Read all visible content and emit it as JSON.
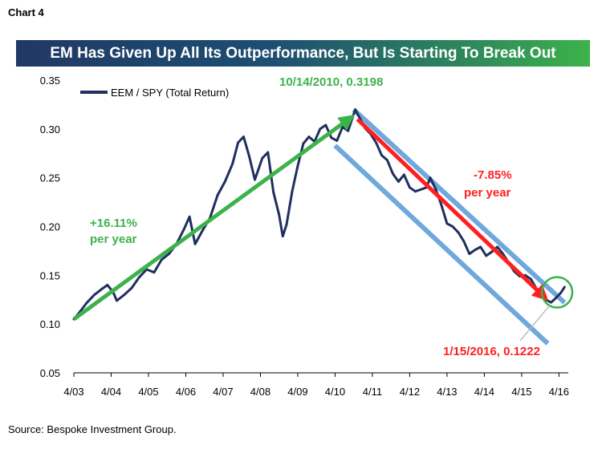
{
  "header": {
    "chart_label": "Chart 4",
    "title": "EM Has Given Up All Its Outperformance, But Is Starting To Break Out"
  },
  "footer": {
    "source": "Source: Bespoke Investment Group."
  },
  "colors": {
    "series": "#1f2f5e",
    "uptrend_arrow": "#3cb34a",
    "downtrend_arrow": "#ff1f1f",
    "channel": "#6fa8dc",
    "breakout_circle": "#3cb34a",
    "title_gradient_start": "#1f3864",
    "title_gradient_end": "#3cb34a"
  },
  "chart_data": {
    "type": "line",
    "title": "EM Has Given Up All Its Outperformance, But Is Starting To Break Out",
    "xlabel": "",
    "ylabel": "",
    "ylim": [
      0.05,
      0.35
    ],
    "yticks": [
      "0.05",
      "0.10",
      "0.15",
      "0.20",
      "0.25",
      "0.30",
      "0.35"
    ],
    "xlim": [
      2003.25,
      2016.5
    ],
    "xticks": [
      "4/03",
      "4/04",
      "4/05",
      "4/06",
      "4/07",
      "4/08",
      "4/09",
      "4/10",
      "4/11",
      "4/12",
      "4/13",
      "4/14",
      "4/15",
      "4/16"
    ],
    "grid": false,
    "legend_position": "top-left",
    "series": [
      {
        "name": "EEM / SPY (Total Return)",
        "x": [
          2003.25,
          2003.4,
          2003.6,
          2003.8,
          2004.0,
          2004.15,
          2004.3,
          2004.4,
          2004.6,
          2004.8,
          2005.0,
          2005.2,
          2005.4,
          2005.6,
          2005.8,
          2006.0,
          2006.2,
          2006.35,
          2006.5,
          2006.7,
          2006.9,
          2007.1,
          2007.3,
          2007.5,
          2007.65,
          2007.8,
          2007.95,
          2008.1,
          2008.3,
          2008.45,
          2008.6,
          2008.75,
          2008.85,
          2008.95,
          2009.1,
          2009.25,
          2009.4,
          2009.55,
          2009.7,
          2009.85,
          2010.0,
          2010.15,
          2010.3,
          2010.45,
          2010.6,
          2010.79,
          2010.9,
          2011.05,
          2011.2,
          2011.35,
          2011.5,
          2011.65,
          2011.8,
          2011.95,
          2012.1,
          2012.25,
          2012.4,
          2012.55,
          2012.7,
          2012.8,
          2012.95,
          2013.1,
          2013.25,
          2013.4,
          2013.55,
          2013.7,
          2013.85,
          2014.0,
          2014.15,
          2014.3,
          2014.45,
          2014.6,
          2014.75,
          2014.9,
          2015.05,
          2015.2,
          2015.35,
          2015.5,
          2015.65,
          2015.8,
          2015.9,
          2016.04,
          2016.15,
          2016.3,
          2016.4
        ],
        "values": [
          0.105,
          0.112,
          0.122,
          0.13,
          0.136,
          0.14,
          0.133,
          0.124,
          0.13,
          0.137,
          0.148,
          0.156,
          0.153,
          0.166,
          0.172,
          0.182,
          0.197,
          0.21,
          0.182,
          0.196,
          0.209,
          0.232,
          0.246,
          0.264,
          0.286,
          0.292,
          0.272,
          0.248,
          0.27,
          0.276,
          0.235,
          0.212,
          0.19,
          0.202,
          0.236,
          0.262,
          0.285,
          0.292,
          0.287,
          0.3,
          0.304,
          0.291,
          0.288,
          0.302,
          0.298,
          0.3198,
          0.312,
          0.301,
          0.295,
          0.286,
          0.273,
          0.268,
          0.254,
          0.246,
          0.253,
          0.24,
          0.236,
          0.238,
          0.24,
          0.25,
          0.238,
          0.222,
          0.203,
          0.2,
          0.194,
          0.185,
          0.172,
          0.176,
          0.179,
          0.17,
          0.174,
          0.179,
          0.172,
          0.163,
          0.154,
          0.149,
          0.15,
          0.146,
          0.136,
          0.13,
          0.125,
          0.1222,
          0.126,
          0.132,
          0.138
        ]
      }
    ],
    "annotations": {
      "peak_label": "10/14/2010, 0.3198",
      "trough_label": "1/15/2016, 0.1222",
      "uptrend_label_line1": "+16.11%",
      "uptrend_label_line2": "per year",
      "downtrend_label_line1": "-7.85%",
      "downtrend_label_line2": "per year"
    },
    "uptrend_arrow": {
      "from": [
        2003.25,
        0.105
      ],
      "to": [
        2010.65,
        0.311
      ]
    },
    "downtrend_arrow": {
      "from": [
        2010.85,
        0.31
      ],
      "to": [
        2015.85,
        0.128
      ]
    },
    "channel": {
      "upper": {
        "from": [
          2010.75,
          0.3198
        ],
        "to": [
          2016.4,
          0.122
        ]
      },
      "lower": {
        "from": [
          2010.25,
          0.283
        ],
        "to": [
          2015.95,
          0.08
        ]
      }
    },
    "breakout_circle_center": [
      2016.2,
      0.1325
    ]
  }
}
